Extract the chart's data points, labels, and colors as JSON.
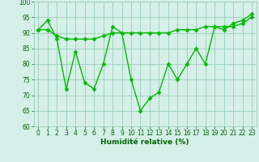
{
  "line1_x": [
    0,
    1,
    2,
    3,
    4,
    5,
    6,
    7,
    8,
    9,
    10,
    11,
    12,
    13,
    14,
    15,
    16,
    17,
    18,
    19,
    20,
    21,
    22,
    23
  ],
  "line1_y": [
    91,
    94,
    88,
    72,
    84,
    74,
    72,
    80,
    92,
    90,
    75,
    65,
    69,
    71,
    80,
    75,
    80,
    85,
    80,
    92,
    91,
    93,
    94,
    96
  ],
  "line2_x": [
    0,
    1,
    2,
    3,
    4,
    5,
    6,
    7,
    8,
    9,
    10,
    11,
    12,
    13,
    14,
    15,
    16,
    17,
    18,
    19,
    20,
    21,
    22,
    23
  ],
  "line2_y": [
    91,
    91,
    89,
    88,
    88,
    88,
    88,
    89,
    90,
    90,
    90,
    90,
    90,
    90,
    90,
    91,
    91,
    91,
    92,
    92,
    92,
    92,
    93,
    95
  ],
  "line_color": "#00bb00",
  "bg_color": "#d5f0e8",
  "grid_color": "#99ccbb",
  "xlabel": "Humidité relative (%)",
  "xlabel_color": "#006600",
  "tick_color": "#006600",
  "ylim": [
    60,
    100
  ],
  "xlim_min": -0.5,
  "xlim_max": 23.5,
  "yticks": [
    60,
    65,
    70,
    75,
    80,
    85,
    90,
    95,
    100
  ],
  "xticks": [
    0,
    1,
    2,
    3,
    4,
    5,
    6,
    7,
    8,
    9,
    10,
    11,
    12,
    13,
    14,
    15,
    16,
    17,
    18,
    19,
    20,
    21,
    22,
    23
  ],
  "marker": "D",
  "markersize": 2.5,
  "linewidth": 1.0,
  "tick_fontsize": 5.5,
  "xlabel_fontsize": 6.5
}
